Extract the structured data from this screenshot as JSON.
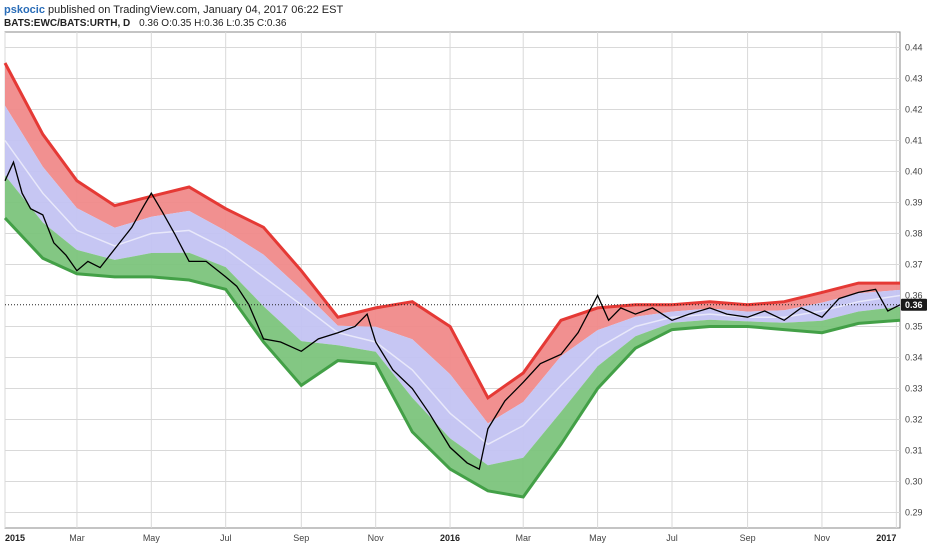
{
  "header": {
    "author": "pskocic",
    "published_text": "published on TradingView.com, January 04, 2017 06:22 EST",
    "symbol": "BATS:EWC/BATS:URTH, D",
    "ohlc": "0.36 O:0.35 H:0.36 L:0.35 C:0.36"
  },
  "chart_data": {
    "type": "line",
    "title": "",
    "x_start": "2015-01-01",
    "x_end": "2017-01-04",
    "ylim": [
      0.285,
      0.445
    ],
    "y_ticks": [
      0.29,
      0.3,
      0.31,
      0.32,
      0.33,
      0.34,
      0.35,
      0.36,
      0.37,
      0.38,
      0.39,
      0.4,
      0.41,
      0.42,
      0.43,
      0.44
    ],
    "y_tick_labels": [
      "0.29",
      "0.30",
      "0.31",
      "0.32",
      "0.33",
      "0.34",
      "0.35",
      "0.36",
      "0.37",
      "0.38",
      "0.39",
      "0.40",
      "0.41",
      "0.42",
      "0.43",
      "0.44"
    ],
    "x_ticks": [
      {
        "date": "2015-01-01",
        "label": "2015",
        "bold": true
      },
      {
        "date": "2015-03-01",
        "label": "Mar",
        "bold": false
      },
      {
        "date": "2015-05-01",
        "label": "May",
        "bold": false
      },
      {
        "date": "2015-07-01",
        "label": "Jul",
        "bold": false
      },
      {
        "date": "2015-09-01",
        "label": "Sep",
        "bold": false
      },
      {
        "date": "2015-11-01",
        "label": "Nov",
        "bold": false
      },
      {
        "date": "2016-01-01",
        "label": "2016",
        "bold": true
      },
      {
        "date": "2016-03-01",
        "label": "Mar",
        "bold": false
      },
      {
        "date": "2016-05-01",
        "label": "May",
        "bold": false
      },
      {
        "date": "2016-07-01",
        "label": "Jul",
        "bold": false
      },
      {
        "date": "2016-09-01",
        "label": "Sep",
        "bold": false
      },
      {
        "date": "2016-11-01",
        "label": "Nov",
        "bold": false
      },
      {
        "date": "2017-01-01",
        "label": "2017",
        "bold": true
      }
    ],
    "last_price_label": "0.36",
    "last_price": 0.357,
    "grid": true,
    "series": [
      {
        "role": "upper_band",
        "color": "#e53935",
        "points": [
          [
            "2015-01-01",
            0.435
          ],
          [
            "2015-02-01",
            0.412
          ],
          [
            "2015-03-01",
            0.397
          ],
          [
            "2015-04-01",
            0.389
          ],
          [
            "2015-05-01",
            0.392
          ],
          [
            "2015-06-01",
            0.395
          ],
          [
            "2015-07-01",
            0.388
          ],
          [
            "2015-08-01",
            0.382
          ],
          [
            "2015-09-01",
            0.368
          ],
          [
            "2015-10-01",
            0.353
          ],
          [
            "2015-11-01",
            0.356
          ],
          [
            "2015-12-01",
            0.358
          ],
          [
            "2016-01-01",
            0.35
          ],
          [
            "2016-02-01",
            0.327
          ],
          [
            "2016-03-01",
            0.335
          ],
          [
            "2016-04-01",
            0.352
          ],
          [
            "2016-05-01",
            0.356
          ],
          [
            "2016-06-01",
            0.357
          ],
          [
            "2016-07-01",
            0.357
          ],
          [
            "2016-08-01",
            0.358
          ],
          [
            "2016-09-01",
            0.357
          ],
          [
            "2016-10-01",
            0.358
          ],
          [
            "2016-11-01",
            0.361
          ],
          [
            "2016-12-01",
            0.364
          ],
          [
            "2017-01-04",
            0.364
          ]
        ]
      },
      {
        "role": "middle_band",
        "color": "#ffffff",
        "points": [
          [
            "2015-01-01",
            0.41
          ],
          [
            "2015-02-01",
            0.393
          ],
          [
            "2015-03-01",
            0.381
          ],
          [
            "2015-04-01",
            0.376
          ],
          [
            "2015-05-01",
            0.38
          ],
          [
            "2015-06-01",
            0.381
          ],
          [
            "2015-07-01",
            0.375
          ],
          [
            "2015-08-01",
            0.366
          ],
          [
            "2015-09-01",
            0.357
          ],
          [
            "2015-10-01",
            0.348
          ],
          [
            "2015-11-01",
            0.345
          ],
          [
            "2015-12-01",
            0.336
          ],
          [
            "2016-01-01",
            0.322
          ],
          [
            "2016-02-01",
            0.312
          ],
          [
            "2016-03-01",
            0.318
          ],
          [
            "2016-04-01",
            0.331
          ],
          [
            "2016-05-01",
            0.343
          ],
          [
            "2016-06-01",
            0.35
          ],
          [
            "2016-07-01",
            0.353
          ],
          [
            "2016-08-01",
            0.354
          ],
          [
            "2016-09-01",
            0.353
          ],
          [
            "2016-10-01",
            0.353
          ],
          [
            "2016-11-01",
            0.355
          ],
          [
            "2016-12-01",
            0.358
          ],
          [
            "2017-01-04",
            0.36
          ]
        ]
      },
      {
        "role": "lower_band",
        "color": "#43a047",
        "points": [
          [
            "2015-01-01",
            0.385
          ],
          [
            "2015-02-01",
            0.372
          ],
          [
            "2015-03-01",
            0.367
          ],
          [
            "2015-04-01",
            0.366
          ],
          [
            "2015-05-01",
            0.366
          ],
          [
            "2015-06-01",
            0.365
          ],
          [
            "2015-07-01",
            0.362
          ],
          [
            "2015-08-01",
            0.345
          ],
          [
            "2015-09-01",
            0.331
          ],
          [
            "2015-10-01",
            0.339
          ],
          [
            "2015-11-01",
            0.338
          ],
          [
            "2015-12-01",
            0.316
          ],
          [
            "2016-01-01",
            0.304
          ],
          [
            "2016-02-01",
            0.297
          ],
          [
            "2016-03-01",
            0.295
          ],
          [
            "2016-04-01",
            0.312
          ],
          [
            "2016-05-01",
            0.33
          ],
          [
            "2016-06-01",
            0.343
          ],
          [
            "2016-07-01",
            0.349
          ],
          [
            "2016-08-01",
            0.35
          ],
          [
            "2016-09-01",
            0.35
          ],
          [
            "2016-10-01",
            0.349
          ],
          [
            "2016-11-01",
            0.348
          ],
          [
            "2016-12-01",
            0.351
          ],
          [
            "2017-01-04",
            0.352
          ]
        ]
      },
      {
        "role": "price",
        "color": "#000000",
        "points": [
          [
            "2015-01-01",
            0.397
          ],
          [
            "2015-01-08",
            0.403
          ],
          [
            "2015-01-15",
            0.393
          ],
          [
            "2015-01-22",
            0.388
          ],
          [
            "2015-02-01",
            0.386
          ],
          [
            "2015-02-10",
            0.377
          ],
          [
            "2015-02-20",
            0.373
          ],
          [
            "2015-03-01",
            0.368
          ],
          [
            "2015-03-10",
            0.371
          ],
          [
            "2015-03-20",
            0.369
          ],
          [
            "2015-04-01",
            0.375
          ],
          [
            "2015-04-15",
            0.382
          ],
          [
            "2015-04-25",
            0.389
          ],
          [
            "2015-05-01",
            0.393
          ],
          [
            "2015-05-10",
            0.387
          ],
          [
            "2015-05-20",
            0.38
          ],
          [
            "2015-06-01",
            0.371
          ],
          [
            "2015-06-15",
            0.371
          ],
          [
            "2015-07-01",
            0.366
          ],
          [
            "2015-07-10",
            0.363
          ],
          [
            "2015-07-20",
            0.357
          ],
          [
            "2015-08-01",
            0.346
          ],
          [
            "2015-08-15",
            0.345
          ],
          [
            "2015-09-01",
            0.342
          ],
          [
            "2015-09-15",
            0.346
          ],
          [
            "2015-10-01",
            0.348
          ],
          [
            "2015-10-15",
            0.35
          ],
          [
            "2015-10-25",
            0.354
          ],
          [
            "2015-11-01",
            0.345
          ],
          [
            "2015-11-15",
            0.336
          ],
          [
            "2015-12-01",
            0.33
          ],
          [
            "2015-12-15",
            0.322
          ],
          [
            "2016-01-01",
            0.311
          ],
          [
            "2016-01-15",
            0.306
          ],
          [
            "2016-01-25",
            0.304
          ],
          [
            "2016-02-01",
            0.317
          ],
          [
            "2016-02-15",
            0.326
          ],
          [
            "2016-03-01",
            0.332
          ],
          [
            "2016-03-15",
            0.338
          ],
          [
            "2016-04-01",
            0.341
          ],
          [
            "2016-04-15",
            0.348
          ],
          [
            "2016-05-01",
            0.36
          ],
          [
            "2016-05-10",
            0.352
          ],
          [
            "2016-05-20",
            0.356
          ],
          [
            "2016-06-01",
            0.354
          ],
          [
            "2016-06-15",
            0.356
          ],
          [
            "2016-07-01",
            0.352
          ],
          [
            "2016-07-15",
            0.354
          ],
          [
            "2016-08-01",
            0.356
          ],
          [
            "2016-08-15",
            0.354
          ],
          [
            "2016-09-01",
            0.353
          ],
          [
            "2016-09-15",
            0.355
          ],
          [
            "2016-10-01",
            0.352
          ],
          [
            "2016-10-15",
            0.356
          ],
          [
            "2016-11-01",
            0.353
          ],
          [
            "2016-11-15",
            0.359
          ],
          [
            "2016-12-01",
            0.361
          ],
          [
            "2016-12-15",
            0.362
          ],
          [
            "2016-12-25",
            0.355
          ],
          [
            "2017-01-04",
            0.357
          ]
        ]
      }
    ]
  },
  "colors": {
    "upper_fill": "#f08a8a",
    "lower_fill": "#7cc47c",
    "middle_fill": "#c3c3f2",
    "grid": "#d9d9d9",
    "axis": "#888888",
    "last_price_tag": "#1a1a1a"
  }
}
